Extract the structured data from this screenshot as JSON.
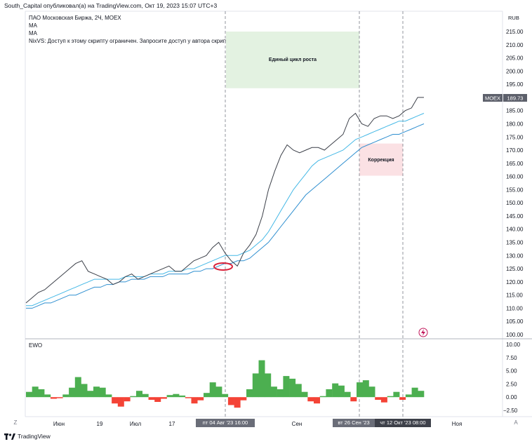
{
  "header": {
    "published_by": "South_Capital опубликовал(а) на TradingView.com, Окт 19, 2023 15:07 UTC+3"
  },
  "legend": {
    "title": "ПАО Московская Биржа, 2Ч, MOEX",
    "ma1": "MA",
    "ma2": "MA",
    "script_notice": "NixVS: Доступ к этому скрипту ограничен. Запросите доступ у автора скрипта."
  },
  "price_axis": {
    "currency": "RUB",
    "price_tag_symbol": "MOEX",
    "price_tag_value": "189.73"
  },
  "annotations": {
    "growth_cycle": "Единый цикл роста",
    "correction": "Коррекция"
  },
  "time_axis": {
    "z_button": "Z",
    "a_button": "A",
    "marker1": "пт 04 Авг '23   16:00",
    "marker2": "вт 26 Сен '23",
    "marker3": "чт 12 Окт '23   08:00"
  },
  "indicator": {
    "name": "EWO"
  },
  "footer": {
    "brand": "TradingView"
  },
  "colors": {
    "price_line": "#3b3f48",
    "ma_fast": "#44b8e6",
    "ma_slow": "#2f8fd0",
    "growth_zone": "#e3f2e1",
    "correction_zone": "#fbe1e4",
    "ewo_positive": "#4caf50",
    "ewo_negative": "#f44336",
    "highlight_circle": "#d9223a"
  },
  "chart_data": [
    {
      "type": "line",
      "title": "ПАО Московская Биржа, 2Ч, MOEX",
      "x_ticks": [
        "Июн",
        "19",
        "Июл",
        "17",
        "Авг",
        "Сен",
        "Ноя"
      ],
      "y_ticks": [
        "215.00",
        "210.00",
        "205.00",
        "200.00",
        "195.00",
        "190.00",
        "185.00",
        "180.00",
        "175.00",
        "170.00",
        "165.00",
        "160.00",
        "155.00",
        "150.00",
        "145.00",
        "140.00",
        "135.00",
        "130.00",
        "125.00",
        "120.00",
        "115.00",
        "110.00",
        "105.00",
        "100.00"
      ],
      "ylim": [
        98,
        218
      ],
      "grid": false,
      "series": [
        {
          "name": "MOEX",
          "values": [
            112,
            114,
            116,
            117,
            119,
            121,
            123,
            125,
            127,
            128,
            124,
            123,
            122,
            121,
            119,
            120,
            122,
            123,
            121,
            122,
            123,
            124,
            125,
            126,
            124,
            124,
            126,
            128,
            129,
            130,
            133,
            135,
            131,
            128,
            126,
            131,
            134,
            138,
            145,
            155,
            162,
            168,
            172,
            170,
            169,
            170,
            171,
            171,
            170,
            172,
            174,
            176,
            182,
            184,
            180,
            179,
            182,
            183,
            183,
            182,
            183,
            185,
            186,
            190,
            190
          ]
        },
        {
          "name": "MA",
          "values": [
            111,
            111,
            112,
            113,
            114,
            115,
            116,
            117,
            118,
            119,
            120,
            121,
            121,
            121,
            121,
            121,
            122,
            122,
            122,
            122,
            123,
            123,
            123,
            124,
            124,
            124,
            125,
            125,
            126,
            127,
            128,
            129,
            130,
            130,
            130,
            131,
            132,
            134,
            136,
            139,
            143,
            147,
            151,
            155,
            158,
            161,
            164,
            166,
            167,
            168,
            169,
            170,
            172,
            174,
            175,
            176,
            177,
            178,
            179,
            180,
            181,
            181,
            182,
            183,
            184
          ]
        },
        {
          "name": "MA",
          "values": [
            110,
            110,
            111,
            112,
            112,
            113,
            114,
            115,
            115,
            116,
            117,
            118,
            118,
            119,
            119,
            120,
            120,
            121,
            121,
            121,
            122,
            122,
            122,
            123,
            123,
            123,
            123,
            124,
            124,
            125,
            125,
            126,
            127,
            127,
            128,
            128,
            129,
            131,
            133,
            135,
            138,
            141,
            144,
            147,
            150,
            153,
            155,
            157,
            159,
            161,
            163,
            165,
            167,
            169,
            171,
            172,
            173,
            174,
            175,
            176,
            176,
            177,
            178,
            179,
            180
          ]
        }
      ]
    },
    {
      "type": "bar",
      "title": "EWO",
      "y_ticks": [
        "10.00",
        "7.50",
        "5.00",
        "2.50",
        "0.00",
        "−2.50"
      ],
      "ylim": [
        -3.5,
        10.5
      ],
      "values": [
        1,
        2,
        1.5,
        0.5,
        -0.3,
        -0.2,
        0.5,
        1.8,
        3.8,
        2.5,
        1.2,
        2,
        1.8,
        0.5,
        -1.2,
        -1.8,
        -0.8,
        0.2,
        1.2,
        0.6,
        -0.5,
        -0.9,
        -0.3,
        0.4,
        0.6,
        0.3,
        -0.2,
        -1.2,
        -0.6,
        0.8,
        2.8,
        2,
        0.6,
        -1.5,
        -2,
        -0.6,
        1.5,
        4.5,
        7,
        4.5,
        2,
        1.5,
        4,
        3.5,
        2.5,
        1,
        -0.8,
        -1.2,
        0.2,
        1.5,
        2.6,
        2.2,
        1,
        -0.8,
        2.8,
        3.2,
        2,
        -0.5,
        -1,
        0.2,
        1,
        -0.5,
        0.5,
        1.8,
        1.2
      ]
    }
  ]
}
